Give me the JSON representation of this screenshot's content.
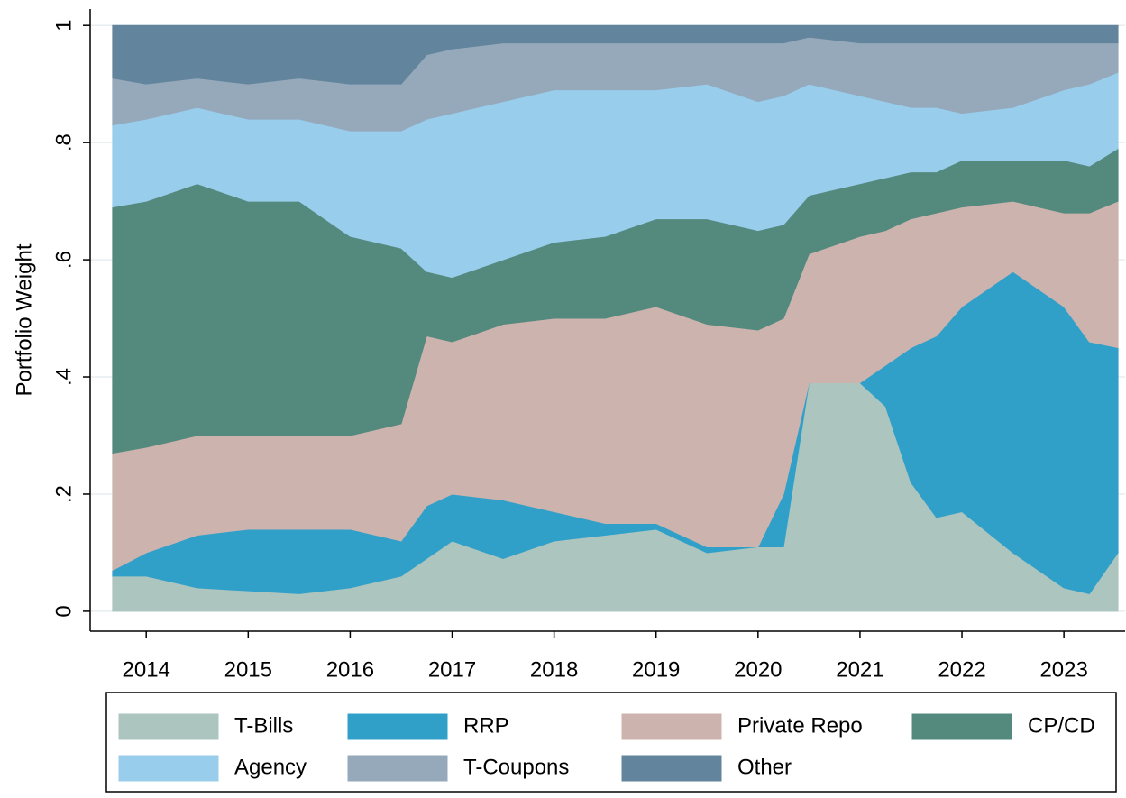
{
  "chart_data": {
    "type": "stacked_area",
    "y_label": "Portfolio Weight",
    "x": [
      2013.67,
      2014,
      2014.5,
      2015,
      2015.5,
      2016,
      2016.5,
      2016.75,
      2017,
      2017.5,
      2018,
      2018.5,
      2019,
      2019.5,
      2020,
      2020.25,
      2020.5,
      2021,
      2021.25,
      2021.5,
      2021.75,
      2022,
      2022.5,
      2023,
      2023.25,
      2023.53
    ],
    "series": [
      {
        "name": "T-Bills",
        "color": "#adc5bf",
        "values": [
          0.06,
          0.06,
          0.04,
          0.035,
          0.03,
          0.04,
          0.06,
          0.09,
          0.12,
          0.09,
          0.12,
          0.13,
          0.14,
          0.1,
          0.11,
          0.11,
          0.39,
          0.39,
          0.35,
          0.22,
          0.16,
          0.17,
          0.1,
          0.04,
          0.03,
          0.1
        ]
      },
      {
        "name": "RRP",
        "color": "#31a0c9",
        "values": [
          0.01,
          0.04,
          0.09,
          0.105,
          0.11,
          0.1,
          0.06,
          0.09,
          0.08,
          0.1,
          0.05,
          0.02,
          0.01,
          0.01,
          0,
          0.09,
          0,
          0,
          0.07,
          0.23,
          0.31,
          0.35,
          0.48,
          0.48,
          0.43,
          0.35
        ]
      },
      {
        "name": "Private Repo",
        "color": "#ccb3ae",
        "values": [
          0.2,
          0.18,
          0.17,
          0.16,
          0.16,
          0.16,
          0.2,
          0.29,
          0.26,
          0.3,
          0.33,
          0.35,
          0.37,
          0.38,
          0.37,
          0.3,
          0.22,
          0.25,
          0.23,
          0.22,
          0.21,
          0.17,
          0.12,
          0.16,
          0.22,
          0.25
        ]
      },
      {
        "name": "CP/CD",
        "color": "#54897e",
        "values": [
          0.42,
          0.42,
          0.43,
          0.4,
          0.4,
          0.34,
          0.3,
          0.11,
          0.11,
          0.11,
          0.13,
          0.14,
          0.15,
          0.18,
          0.17,
          0.16,
          0.1,
          0.09,
          0.09,
          0.08,
          0.07,
          0.08,
          0.07,
          0.09,
          0.08,
          0.09
        ]
      },
      {
        "name": "Agency",
        "color": "#99cdec",
        "values": [
          0.14,
          0.14,
          0.13,
          0.14,
          0.14,
          0.18,
          0.2,
          0.26,
          0.28,
          0.27,
          0.26,
          0.25,
          0.22,
          0.23,
          0.22,
          0.22,
          0.19,
          0.15,
          0.13,
          0.11,
          0.11,
          0.08,
          0.09,
          0.12,
          0.14,
          0.13
        ]
      },
      {
        "name": "T-Coupons",
        "color": "#95a9bb",
        "values": [
          0.08,
          0.06,
          0.05,
          0.06,
          0.07,
          0.08,
          0.08,
          0.11,
          0.11,
          0.1,
          0.08,
          0.08,
          0.08,
          0.07,
          0.1,
          0.09,
          0.08,
          0.09,
          0.1,
          0.11,
          0.11,
          0.12,
          0.11,
          0.08,
          0.07,
          0.05
        ]
      },
      {
        "name": "Other",
        "color": "#62849d",
        "values": [
          0.09,
          0.1,
          0.09,
          0.1,
          0.09,
          0.1,
          0.1,
          0.05,
          0.04,
          0.03,
          0.03,
          0.03,
          0.03,
          0.03,
          0.03,
          0.03,
          0.02,
          0.03,
          0.03,
          0.03,
          0.03,
          0.03,
          0.03,
          0.03,
          0.03,
          0.03
        ]
      }
    ],
    "xlim": [
      2013.45,
      2023.6
    ],
    "xticks": [
      2014,
      2015,
      2016,
      2017,
      2018,
      2019,
      2020,
      2021,
      2022,
      2023
    ],
    "ylim": [
      -0.034,
      1.028
    ],
    "yticks": [
      0,
      {
        "value": 0.2,
        "label": ".2"
      },
      {
        "value": 0.4,
        "label": ".4"
      },
      {
        "value": 0.6,
        "label": ".6"
      },
      {
        "value": 0.8,
        "label": ".8"
      },
      1
    ],
    "grid": true
  }
}
